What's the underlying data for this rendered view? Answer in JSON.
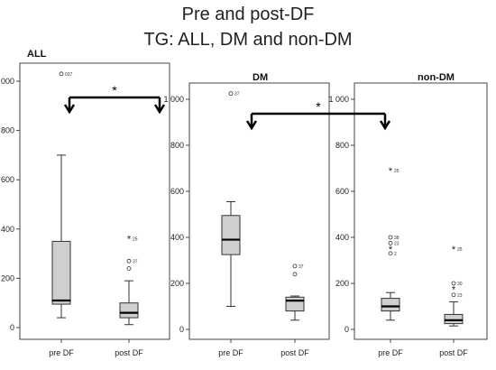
{
  "title": {
    "line1": "Pre and post-DF",
    "line2": "TG: ALL, DM and non-DM"
  },
  "chart_data": [
    {
      "type": "box",
      "title": "ALL",
      "categories": [
        "pre DF",
        "post DF"
      ],
      "yticks": [
        "0",
        "200",
        "400",
        "600",
        "800",
        "1 000"
      ],
      "ylim": [
        -20,
        1040
      ],
      "boxes": [
        {
          "category": "pre DF",
          "min": 40,
          "q1": 95,
          "median": 110,
          "q3": 350,
          "max": 700,
          "outliers": [
            {
              "value": 1030,
              "label": "037",
              "marker": "o"
            }
          ]
        },
        {
          "category": "post DF",
          "min": 12,
          "q1": 40,
          "median": 60,
          "q3": 100,
          "max": 190,
          "outliers": [
            {
              "value": 240,
              "label": "",
              "marker": "o"
            },
            {
              "value": 270,
              "label": "37",
              "marker": "o"
            },
            {
              "value": 360,
              "label": "25",
              "marker": "*"
            }
          ]
        }
      ],
      "annotation": "*",
      "bracket": [
        "pre DF",
        "post DF"
      ]
    },
    {
      "type": "box",
      "title": "DM",
      "categories": [
        "pre DF",
        "post DF"
      ],
      "yticks": [
        "0",
        "200",
        "400",
        "600",
        "800",
        "1 000"
      ],
      "ylim": [
        -20,
        1040
      ],
      "boxes": [
        {
          "category": "pre DF",
          "min": 100,
          "q1": 325,
          "median": 390,
          "q3": 495,
          "max": 555,
          "outliers": [
            {
              "value": 1025,
              "label": "37",
              "marker": "o"
            }
          ]
        },
        {
          "category": "post DF",
          "min": 40,
          "q1": 80,
          "median": 125,
          "q3": 140,
          "max": 145,
          "outliers": [
            {
              "value": 240,
              "label": "",
              "marker": "o"
            },
            {
              "value": 275,
              "label": "37",
              "marker": "o"
            }
          ]
        }
      ]
    },
    {
      "type": "box",
      "title": "non-DM",
      "categories": [
        "pre DF",
        "post DF"
      ],
      "yticks": [
        "0",
        "200",
        "400",
        "600",
        "800",
        "1 000"
      ],
      "ylim": [
        -20,
        1040
      ],
      "boxes": [
        {
          "category": "pre DF",
          "min": 40,
          "q1": 80,
          "median": 100,
          "q3": 135,
          "max": 160,
          "outliers": [
            {
              "value": 690,
              "label": "25",
              "marker": "*"
            },
            {
              "value": 400,
              "label": "38",
              "marker": "o"
            },
            {
              "value": 375,
              "label": "23",
              "marker": "o"
            },
            {
              "value": 350,
              "label": "",
              "marker": "*"
            },
            {
              "value": 330,
              "label": "2",
              "marker": "o"
            }
          ]
        },
        {
          "category": "post DF",
          "min": 15,
          "q1": 25,
          "median": 40,
          "q3": 65,
          "max": 120,
          "outliers": [
            {
              "value": 350,
              "label": "25",
              "marker": "*"
            },
            {
              "value": 200,
              "label": "30",
              "marker": "o"
            },
            {
              "value": 175,
              "label": "",
              "marker": "*"
            },
            {
              "value": 150,
              "label": "23",
              "marker": "o"
            }
          ]
        }
      ],
      "annotation": "*",
      "bracket_from_panel": "DM:pre DF",
      "bracket_to": "non-DM:pre DF"
    }
  ]
}
